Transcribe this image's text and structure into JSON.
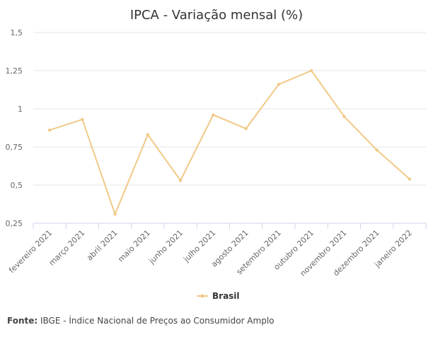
{
  "chart_data": {
    "type": "line",
    "title": "IPCA - Variação mensal (%)",
    "xlabel": "",
    "ylabel": "",
    "categories": [
      "fevereiro 2021",
      "março 2021",
      "abril 2021",
      "maio 2021",
      "junho 2021",
      "julho 2021",
      "agosto 2021",
      "setembro 2021",
      "outubro 2021",
      "novembro 2021",
      "dezembro 2021",
      "janeiro 2022"
    ],
    "series": [
      {
        "name": "Brasil",
        "values": [
          0.86,
          0.93,
          0.31,
          0.83,
          0.53,
          0.96,
          0.87,
          1.16,
          1.25,
          0.95,
          0.73,
          0.54
        ],
        "color": "#f0c987"
      }
    ],
    "ylim": [
      0.25,
      1.5
    ],
    "yticks": [
      0.25,
      0.5,
      0.75,
      1,
      1.25,
      1.5
    ],
    "ytick_labels": [
      "0,25",
      "0,5",
      "0,75",
      "1",
      "1,25",
      "1,5"
    ],
    "grid": true,
    "legend": "bottom-center"
  },
  "source": {
    "label": "Fonte:",
    "text": " IBGE - Índice Nacional de Preços ao Consumidor Amplo"
  }
}
